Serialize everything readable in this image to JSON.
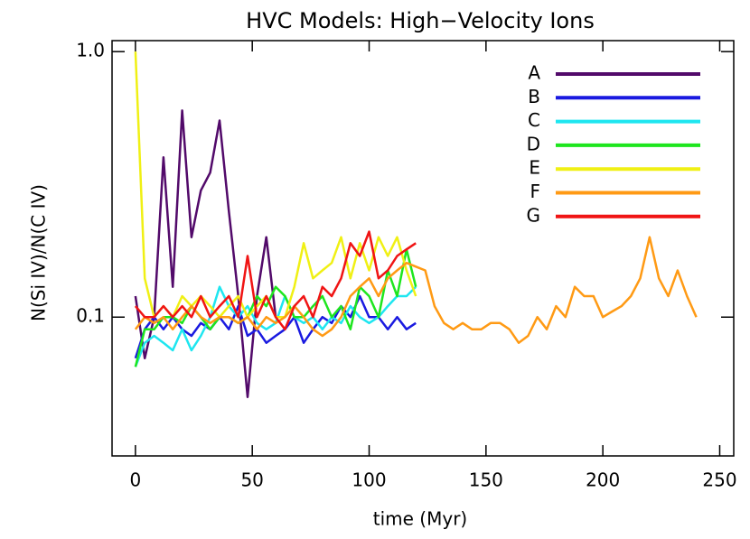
{
  "chart_data": {
    "type": "line",
    "title": "HVC Models: High−Velocity Ions",
    "x_label": "time (Myr)",
    "y_label": "N(Si IV)/N(C IV)",
    "log_y": true,
    "legend_position": "upper-right",
    "xlim": [
      -10,
      256
    ],
    "ylim": [
      0.03,
      1.1
    ],
    "xticks": [
      0,
      50,
      100,
      150,
      200,
      250
    ],
    "yticks": [
      0.1,
      {
        "value": 1,
        "label": "1.0"
      }
    ],
    "x": [
      0,
      4,
      8,
      12,
      16,
      20,
      24,
      28,
      32,
      36,
      40,
      44,
      48,
      52,
      56,
      60,
      64,
      68,
      72,
      76,
      80,
      84,
      88,
      92,
      96,
      100,
      104,
      108,
      112,
      116,
      120,
      124,
      128,
      132,
      136,
      140,
      144,
      148,
      152,
      156,
      160,
      164,
      168,
      172,
      176,
      180,
      184,
      188,
      192,
      196,
      200,
      204,
      208,
      212,
      216,
      220,
      224,
      228,
      232,
      236,
      240
    ],
    "series": [
      {
        "name": "A",
        "color": "#520a6a",
        "values": [
          0.12,
          0.07,
          0.1,
          0.4,
          0.13,
          0.6,
          0.2,
          0.3,
          0.35,
          0.55,
          0.25,
          0.12,
          0.05,
          0.12,
          0.2,
          0.1,
          null,
          null,
          null,
          null,
          null,
          null,
          null,
          null,
          null,
          null,
          null,
          null,
          null,
          null,
          null,
          null,
          null,
          null,
          null,
          null,
          null,
          null,
          null,
          null,
          null,
          null,
          null,
          null,
          null,
          null,
          null,
          null,
          null,
          null,
          null,
          null,
          null,
          null,
          null,
          null,
          null,
          null,
          null,
          null,
          null
        ]
      },
      {
        "name": "B",
        "color": "#1a1ae0",
        "values": [
          0.07,
          0.09,
          0.1,
          0.09,
          0.1,
          0.09,
          0.085,
          0.095,
          0.09,
          0.1,
          0.09,
          0.11,
          0.085,
          0.09,
          0.08,
          0.085,
          0.09,
          0.1,
          0.08,
          0.09,
          0.1,
          0.095,
          0.11,
          0.1,
          0.12,
          0.1,
          0.1,
          0.09,
          0.1,
          0.09,
          0.095,
          null,
          null,
          null,
          null,
          null,
          null,
          null,
          null,
          null,
          null,
          null,
          null,
          null,
          null,
          null,
          null,
          null,
          null,
          null,
          null,
          null,
          null,
          null,
          null,
          null,
          null,
          null,
          null,
          null,
          null
        ]
      },
      {
        "name": "C",
        "color": "#1ee6f0",
        "values": [
          0.065,
          0.08,
          0.085,
          0.08,
          0.075,
          0.09,
          0.075,
          0.085,
          0.1,
          0.13,
          0.11,
          0.1,
          0.11,
          0.095,
          0.09,
          0.095,
          0.12,
          0.1,
          0.095,
          0.1,
          0.09,
          0.1,
          0.095,
          0.11,
          0.1,
          0.095,
          0.1,
          0.11,
          0.12,
          0.12,
          0.13,
          null,
          null,
          null,
          null,
          null,
          null,
          null,
          null,
          null,
          null,
          null,
          null,
          null,
          null,
          null,
          null,
          null,
          null,
          null,
          null,
          null,
          null,
          null,
          null,
          null,
          null,
          null,
          null,
          null,
          null
        ]
      },
      {
        "name": "D",
        "color": "#1ee61e",
        "values": [
          0.065,
          0.09,
          0.09,
          0.1,
          0.1,
          0.095,
          0.11,
          0.1,
          0.09,
          0.1,
          0.1,
          0.095,
          0.1,
          0.12,
          0.11,
          0.13,
          0.12,
          0.1,
          0.1,
          0.11,
          0.12,
          0.1,
          0.11,
          0.09,
          0.13,
          0.12,
          0.1,
          0.15,
          0.12,
          0.18,
          0.13,
          null,
          null,
          null,
          null,
          null,
          null,
          null,
          null,
          null,
          null,
          null,
          null,
          null,
          null,
          null,
          null,
          null,
          null,
          null,
          null,
          null,
          null,
          null,
          null,
          null,
          null,
          null,
          null,
          null,
          null
        ]
      },
      {
        "name": "E",
        "color": "#f0f014",
        "values": [
          1.0,
          0.14,
          0.1,
          0.11,
          0.1,
          0.12,
          0.11,
          0.12,
          0.11,
          0.1,
          0.11,
          0.12,
          0.1,
          0.11,
          0.12,
          0.1,
          0.1,
          0.13,
          0.19,
          0.14,
          0.15,
          0.16,
          0.2,
          0.14,
          0.19,
          0.15,
          0.2,
          0.17,
          0.2,
          0.15,
          0.12,
          null,
          null,
          null,
          null,
          null,
          null,
          null,
          null,
          null,
          null,
          null,
          null,
          null,
          null,
          null,
          null,
          null,
          null,
          null,
          null,
          null,
          null,
          null,
          null,
          null,
          null,
          null,
          null,
          null,
          null
        ]
      },
      {
        "name": "F",
        "color": "#ff9a14",
        "values": [
          0.09,
          0.1,
          0.095,
          0.1,
          0.09,
          0.1,
          0.11,
          0.1,
          0.095,
          0.1,
          0.1,
          0.095,
          0.1,
          0.09,
          0.1,
          0.095,
          0.1,
          0.11,
          0.1,
          0.09,
          0.085,
          0.09,
          0.1,
          0.12,
          0.13,
          0.14,
          0.12,
          0.14,
          0.15,
          0.16,
          0.155,
          0.15,
          0.11,
          0.095,
          0.09,
          0.095,
          0.09,
          0.09,
          0.095,
          0.095,
          0.09,
          0.08,
          0.085,
          0.1,
          0.09,
          0.11,
          0.1,
          0.13,
          0.12,
          0.12,
          0.1,
          0.105,
          0.11,
          0.12,
          0.14,
          0.2,
          0.14,
          0.12,
          0.15,
          0.12,
          0.1
        ]
      },
      {
        "name": "G",
        "color": "#f01414",
        "values": [
          0.11,
          0.1,
          0.1,
          0.11,
          0.1,
          0.11,
          0.1,
          0.12,
          0.1,
          0.11,
          0.12,
          0.1,
          0.17,
          0.1,
          0.12,
          0.1,
          0.09,
          0.11,
          0.12,
          0.1,
          0.13,
          0.12,
          0.14,
          0.19,
          0.17,
          0.21,
          0.14,
          0.15,
          0.17,
          0.18,
          0.19,
          null,
          null,
          null,
          null,
          null,
          null,
          null,
          null,
          null,
          null,
          null,
          null,
          null,
          null,
          null,
          null,
          null,
          null,
          null,
          null,
          null,
          null,
          null,
          null,
          null,
          null,
          null,
          null,
          null,
          null
        ]
      }
    ]
  }
}
